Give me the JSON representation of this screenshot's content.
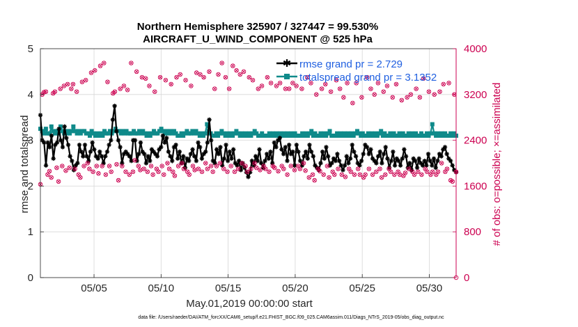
{
  "chart_data": {
    "type": "line",
    "title": [
      "Northern Hemisphere 325907 / 327447 = 99.530%",
      "AIRCRAFT_U_WIND_COMPONENT @ 525 hPa"
    ],
    "xlabel": "May.01,2019 00:00:00 start",
    "ylabel_left": "rmse and totalspread",
    "ylabel_right": "# of obs: o=possible; ×=assimilated",
    "x_tick_labels": [
      "05/05",
      "05/10",
      "05/15",
      "05/20",
      "05/25",
      "05/30"
    ],
    "x_ticks_day": [
      5,
      10,
      15,
      20,
      25,
      30
    ],
    "x_range_day": [
      1,
      32
    ],
    "ylim_left": [
      0,
      5
    ],
    "y_ticks_left": [
      "0",
      "1",
      "2",
      "3",
      "4",
      "5"
    ],
    "ylim_right": [
      0,
      4000
    ],
    "y_ticks_right": [
      "0",
      "800",
      "1600",
      "2400",
      "3200",
      "4000"
    ],
    "grid": true,
    "legend": {
      "position": "top-right",
      "entries": [
        "rmse grand pr = 2.729",
        "totalspread grand pr = 3.1352"
      ]
    },
    "colors": {
      "rmse": "#000000",
      "spread": "#0f8a8a",
      "obs": "#cc0050",
      "right_axis": "#cc0050",
      "legend_text": "#1f5fe0"
    },
    "series": [
      {
        "name": "rmse",
        "axis": "left",
        "style": "line-star",
        "values": [
          3.55,
          3.0,
          2.95,
          2.45,
          2.95,
          2.85,
          3.1,
          2.6,
          2.9,
          2.95,
          3.25,
          3.0,
          2.85,
          3.3,
          3.05,
          2.9,
          2.65,
          2.55,
          2.35,
          2.45,
          2.5,
          2.9,
          2.75,
          2.65,
          2.9,
          2.65,
          2.55,
          2.75,
          2.95,
          2.8,
          2.65,
          2.6,
          2.75,
          2.65,
          2.5,
          2.65,
          2.75,
          2.9,
          3.0,
          3.45,
          3.75,
          3.2,
          3.0,
          2.85,
          2.5,
          2.7,
          2.75,
          2.7,
          2.65,
          2.55,
          3.0,
          3.0,
          2.55,
          2.7,
          2.95,
          2.75,
          2.7,
          2.5,
          2.65,
          2.55,
          2.8,
          2.75,
          2.7,
          2.65,
          2.8,
          2.85,
          3.1,
          2.95,
          3.05,
          2.75,
          2.65,
          2.55,
          2.85,
          2.9,
          2.6,
          2.75,
          2.5,
          2.65,
          2.4,
          2.6,
          2.55,
          2.7,
          2.8,
          2.65,
          2.55,
          2.95,
          2.85,
          2.6,
          2.7,
          2.75,
          2.95,
          3.45,
          3.0,
          2.55,
          2.5,
          2.8,
          2.7,
          2.85,
          2.45,
          2.6,
          2.9,
          2.55,
          2.75,
          2.6,
          2.8,
          2.5,
          2.45,
          2.55,
          2.35,
          2.5,
          2.4,
          2.3,
          2.2,
          2.3,
          2.55,
          2.45,
          2.65,
          2.55,
          2.8,
          2.5,
          2.4,
          2.55,
          2.7,
          2.6,
          2.75,
          2.5,
          2.95,
          2.85,
          3.0,
          3.05,
          2.8,
          2.7,
          2.85,
          2.55,
          2.9,
          2.7,
          2.75,
          2.45,
          2.9,
          2.75,
          2.55,
          2.45,
          2.65,
          2.75,
          2.6,
          2.9,
          2.75,
          2.65,
          2.45,
          2.4,
          2.35,
          2.5,
          2.75,
          2.6,
          2.85,
          2.65,
          2.45,
          2.5,
          2.6,
          2.55,
          2.7,
          2.55,
          2.45,
          2.35,
          2.45,
          2.65,
          2.5,
          2.6,
          2.9,
          2.75,
          2.65,
          2.5,
          2.45,
          2.55,
          2.7,
          2.9,
          2.85,
          2.7,
          2.8,
          2.6,
          2.55,
          2.5,
          2.65,
          2.75,
          2.5,
          2.7,
          2.85,
          2.6,
          2.4,
          2.55,
          2.75,
          2.45,
          2.6,
          2.55,
          2.45,
          2.6,
          2.8,
          2.65,
          2.4,
          2.5,
          2.35,
          2.6,
          2.55,
          2.4,
          2.6,
          2.5,
          2.45,
          2.55,
          2.45,
          2.7,
          2.55,
          2.45,
          2.6,
          2.4,
          2.55,
          2.7,
          2.65,
          2.8,
          2.85,
          2.7,
          2.6,
          2.55,
          2.45,
          2.35,
          2.3
        ]
      },
      {
        "name": "totalspread",
        "axis": "left",
        "style": "line-square",
        "values": [
          3.25,
          3.2,
          3.15,
          3.25,
          3.15,
          3.15,
          3.3,
          3.2,
          3.15,
          3.2,
          3.15,
          3.3,
          3.2,
          3.15,
          3.15,
          3.2,
          3.15,
          3.2,
          3.3,
          3.2,
          3.15,
          3.2,
          3.15,
          3.2,
          3.2,
          3.15,
          3.15,
          3.1,
          3.2,
          3.15,
          3.1,
          3.15,
          3.1,
          3.15,
          3.1,
          3.2,
          3.15,
          3.15,
          3.2,
          3.15,
          3.2,
          3.25,
          3.2,
          3.2,
          3.15,
          3.2,
          3.15,
          3.2,
          3.15,
          3.15,
          3.15,
          3.2,
          3.15,
          3.15,
          3.2,
          3.15,
          3.2,
          3.15,
          3.1,
          3.15,
          3.1,
          3.15,
          3.2,
          3.15,
          3.15,
          3.2,
          3.25,
          3.2,
          3.15,
          3.2,
          3.15,
          3.2,
          3.15,
          3.2,
          3.15,
          3.1,
          3.1,
          3.15,
          3.1,
          3.15,
          3.2,
          3.15,
          3.15,
          3.2,
          3.15,
          3.2,
          3.15,
          3.1,
          3.15,
          3.1,
          3.15,
          3.35,
          3.2,
          3.15,
          3.1,
          3.1,
          3.15,
          3.1,
          3.15,
          3.2,
          3.15,
          3.1,
          3.15,
          3.1,
          3.15,
          3.1,
          3.15,
          3.2,
          3.15,
          3.1,
          3.15,
          3.1,
          3.15,
          3.1,
          3.15,
          3.1,
          3.15,
          3.2,
          3.15,
          3.1,
          3.1,
          3.15,
          3.1,
          3.1,
          3.1,
          3.15,
          3.1,
          3.15,
          3.1,
          3.15,
          3.1,
          3.15,
          3.1,
          3.15,
          3.1,
          3.15,
          3.1,
          3.15,
          3.1,
          3.15,
          3.1,
          3.1,
          3.1,
          3.15,
          3.1,
          3.15,
          3.1,
          3.15,
          3.2,
          3.1,
          3.15,
          3.1,
          3.1,
          3.15,
          3.1,
          3.15,
          3.1,
          3.15,
          3.2,
          3.1,
          3.1,
          3.1,
          3.15,
          3.1,
          3.15,
          3.1,
          3.15,
          3.1,
          3.15,
          3.1,
          3.15,
          3.1,
          3.15,
          3.2,
          3.15,
          3.1,
          3.15,
          3.1,
          3.1,
          3.15,
          3.1,
          3.15,
          3.1,
          3.15,
          3.1,
          3.15,
          3.2,
          3.1,
          3.15,
          3.1,
          3.1,
          3.15,
          3.1,
          3.15,
          3.1,
          3.1,
          3.15,
          3.1,
          3.15,
          3.1,
          3.1,
          3.15,
          3.1,
          3.15,
          3.1,
          3.15,
          3.1,
          3.1,
          3.15,
          3.1,
          3.1,
          3.15,
          3.1,
          3.15,
          3.35,
          3.15,
          3.1,
          3.15,
          3.1,
          3.15,
          3.1,
          3.15,
          3.1,
          3.1,
          3.15,
          3.1,
          3.15,
          3.1
        ]
      },
      {
        "name": "obs possible/assimilated",
        "axis": "right",
        "style": "circle-and-x",
        "values": [
          1630,
          3200,
          3240,
          3250,
          1800,
          1860,
          1750,
          3220,
          3250,
          1920,
          1680,
          3300,
          1950,
          3350,
          1870,
          3380,
          1920,
          3300,
          3380,
          1900,
          3250,
          1800,
          1750,
          3420,
          1950,
          3450,
          2000,
          1900,
          3580,
          1850,
          3620,
          1950,
          1820,
          3700,
          1950,
          3750,
          1800,
          3420,
          1950,
          1850,
          3220,
          3250,
          1980,
          1700,
          3300,
          1950,
          3350,
          1850,
          3280,
          1800,
          3750,
          1850,
          2050,
          3600,
          1950,
          1880,
          3500,
          1900,
          3480,
          1850,
          3350,
          1950,
          1800,
          3250,
          1900,
          1850,
          3500,
          1950,
          1800,
          3450,
          2000,
          1900,
          3380,
          1850,
          1780,
          3500,
          1950,
          3550,
          2000,
          1900,
          3450,
          1850,
          1800,
          3350,
          1950,
          1880,
          3580,
          1900,
          3550,
          1850,
          3500,
          2000,
          1900,
          3600,
          1950,
          1850,
          3300,
          1950,
          3550,
          2000,
          3750,
          1900,
          3500,
          1850,
          3300,
          1950,
          3700,
          1850,
          3620,
          1900,
          3550,
          2000,
          3600,
          1950,
          1850,
          3500,
          1900,
          3450,
          2000,
          1920,
          3300,
          1880,
          3350,
          1950,
          1900,
          3500,
          1850,
          3400,
          1950,
          1920,
          3350,
          1860,
          3400,
          1950,
          1900,
          3300,
          1800,
          3300,
          1950,
          3400,
          1880,
          3350,
          1950,
          1900,
          3300,
          2000,
          1870,
          3500,
          1750,
          3400,
          1800,
          1700,
          3200,
          1900,
          1860,
          3300,
          1800,
          3380,
          1950,
          1750,
          3250,
          1850,
          1800,
          3450,
          1900,
          3300,
          1800,
          3150,
          1760,
          3400,
          1900,
          1850,
          3050,
          1800,
          3400,
          1900,
          1800,
          3150,
          1750,
          1800,
          3500,
          1900,
          3300,
          1800,
          3200,
          1850,
          3400,
          1900,
          1750,
          3250,
          1800,
          3350,
          1900,
          1850,
          3150,
          1800,
          3380,
          1850,
          1800,
          3100,
          1780,
          1830,
          3150,
          1900,
          3200,
          1850,
          1800,
          3300,
          1850,
          3150,
          1800,
          3480,
          1900,
          1850,
          3250,
          1800,
          1850,
          3200,
          1800,
          1850,
          3250,
          2000,
          3380,
          1850,
          1900,
          3400,
          1700,
          1680,
          3200,
          1850
        ]
      }
    ]
  },
  "footer": "data file: /Users/raeder/DAI/ATM_forcXX/CAM6_setup/f.e21.FHIST_BGC.f09_025.CAM6assim.011/Diags_NTrS_2019-05/obs_diag_output.nc"
}
